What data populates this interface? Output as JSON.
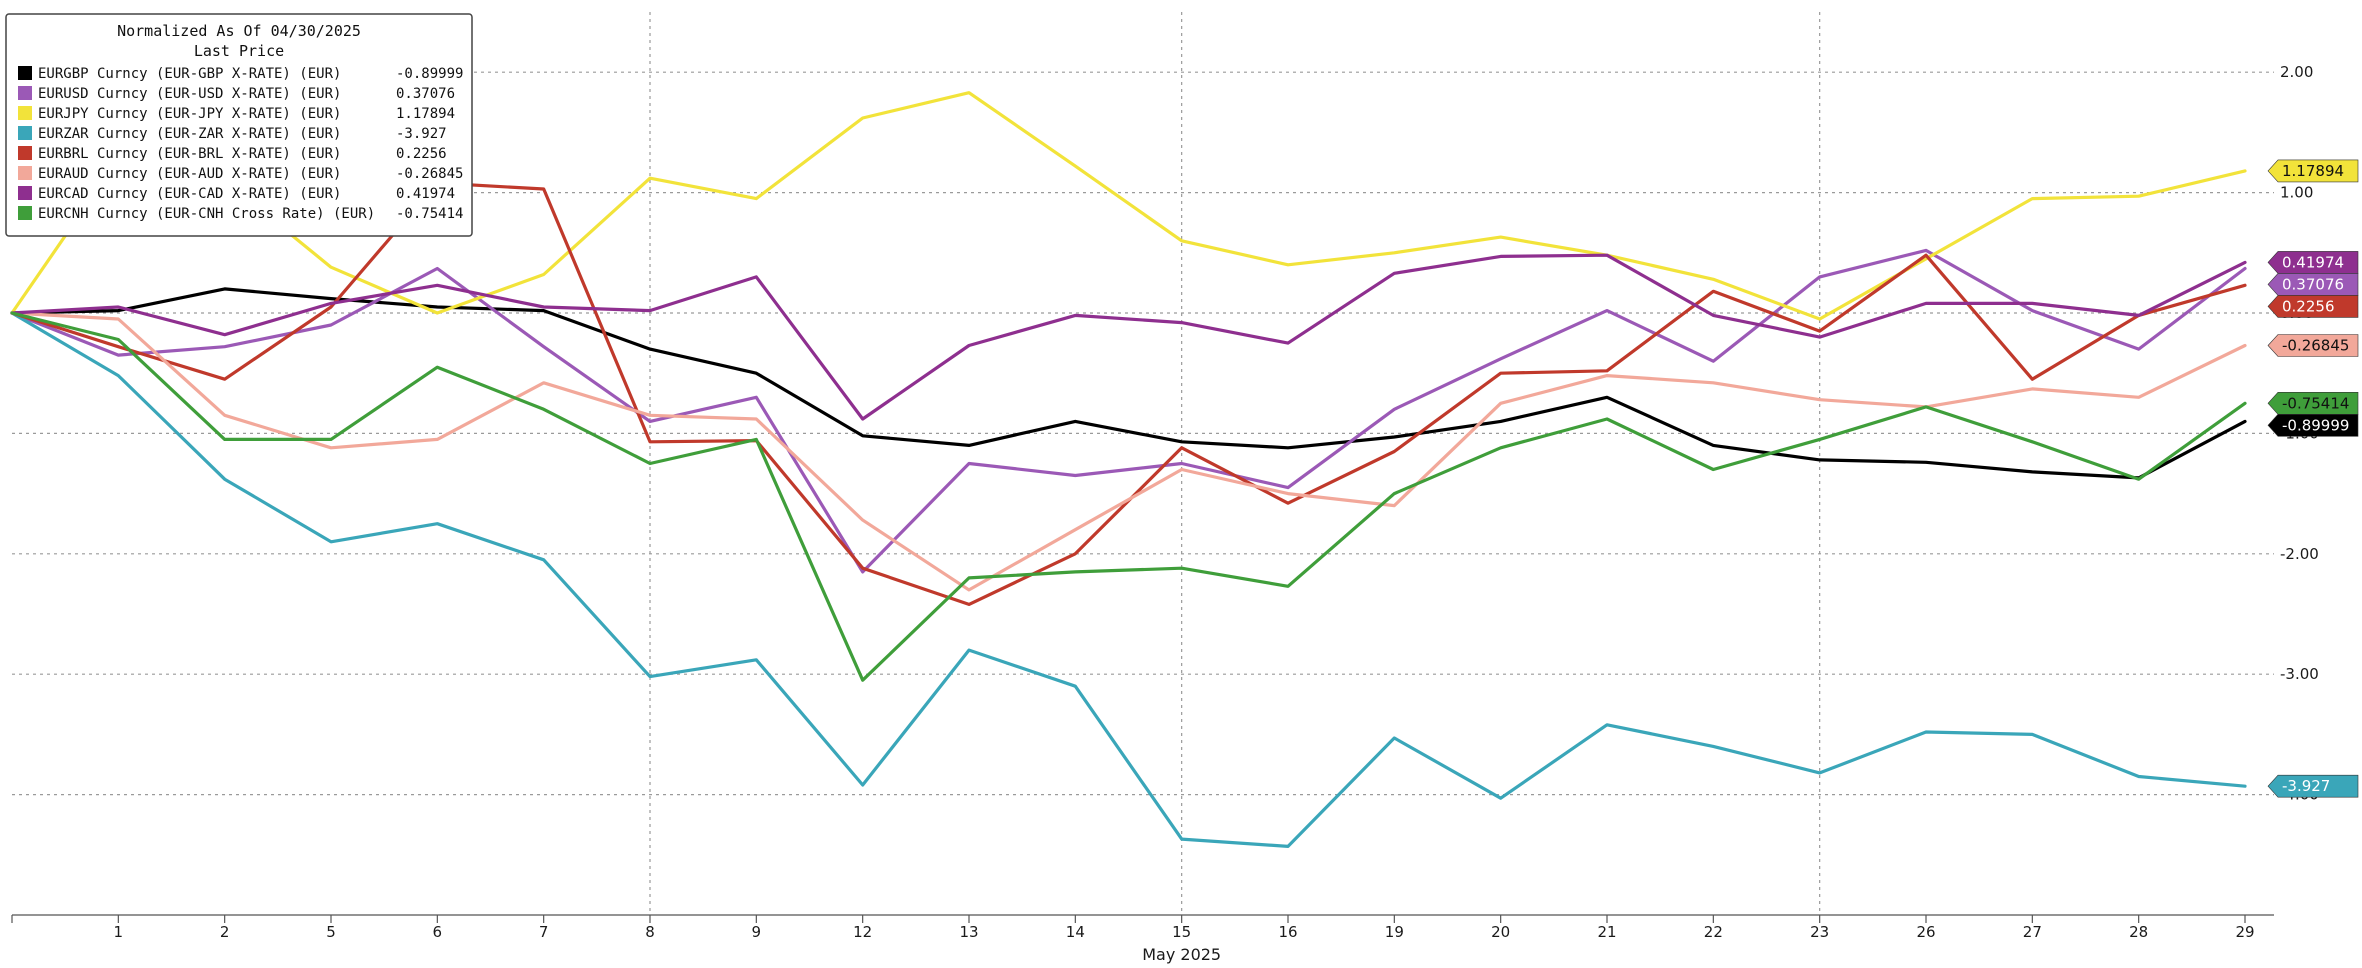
{
  "chart_data": {
    "type": "line",
    "legend": {
      "title_line1": "Normalized As Of 04/30/2025",
      "title_line2": "Last Price",
      "placement": "top-left"
    },
    "x": [
      "",
      "1",
      "2",
      "5",
      "6",
      "7",
      "8",
      "9",
      "12",
      "13",
      "14",
      "15",
      "16",
      "19",
      "20",
      "21",
      "22",
      "23",
      "26",
      "27",
      "28",
      "29"
    ],
    "xlabel": "May 2025",
    "ylim": [
      -5.0,
      2.5
    ],
    "yticks": [
      2.0,
      1.0,
      0.0,
      -1.0,
      -2.0,
      -3.0,
      -4.0
    ],
    "ytick_labels": [
      "2.00",
      "1.00",
      "0.00",
      "-1.00",
      "-2.00",
      "-3.00",
      "-4.00"
    ],
    "vertical_grid_at": [
      "8",
      "15",
      "23"
    ],
    "grid": true,
    "series": [
      {
        "name": "EURGBP Curncy (EUR-GBP X-RATE) (EUR)",
        "last_price": "-0.89999",
        "color": "#000000",
        "end_text_color": "#ffffff",
        "values": [
          0,
          0.02,
          0.2,
          0.12,
          0.05,
          0.02,
          -0.3,
          -0.5,
          -1.02,
          -1.1,
          -0.9,
          -1.07,
          -1.12,
          -1.03,
          -0.9,
          -0.7,
          -1.1,
          -1.22,
          -1.24,
          -1.32,
          -1.37,
          -0.9
        ]
      },
      {
        "name": "EURUSD Curncy (EUR-USD X-RATE) (EUR)",
        "last_price": "0.37076",
        "color": "#9b59b6",
        "end_text_color": "#ffffff",
        "values": [
          0,
          -0.35,
          -0.28,
          -0.1,
          0.37,
          -0.28,
          -0.9,
          -0.7,
          -2.15,
          -1.25,
          -1.35,
          -1.25,
          -1.45,
          -0.8,
          -0.38,
          0.02,
          -0.4,
          0.3,
          0.52,
          0.02,
          -0.3,
          0.37
        ]
      },
      {
        "name": "EURJPY Curncy (EUR-JPY X-RATE) (EUR)",
        "last_price": "1.17894",
        "color": "#f2e33a",
        "end_text_color": "#111111",
        "values": [
          0,
          1.28,
          1.1,
          0.38,
          0.0,
          0.32,
          1.12,
          0.95,
          1.62,
          1.83,
          1.22,
          0.6,
          0.4,
          0.5,
          0.63,
          0.48,
          0.28,
          -0.05,
          0.45,
          0.95,
          0.97,
          1.18
        ]
      },
      {
        "name": "EURZAR Curncy (EUR-ZAR X-RATE) (EUR)",
        "last_price": "-3.927",
        "color": "#3aa6b9",
        "end_text_color": "#ffffff",
        "values": [
          0,
          -0.52,
          -1.38,
          -1.9,
          -1.75,
          -2.05,
          -3.02,
          -2.88,
          -3.92,
          -2.8,
          -3.1,
          -4.37,
          -4.43,
          -3.53,
          -4.03,
          -3.42,
          -3.6,
          -3.82,
          -3.48,
          -3.5,
          -3.85,
          -3.93
        ]
      },
      {
        "name": "EURBRL Curncy (EUR-BRL X-RATE) (EUR)",
        "last_price": "0.2256",
        "color": "#c0392b",
        "end_text_color": "#ffffff",
        "values": [
          0,
          -0.28,
          -0.55,
          0.05,
          1.08,
          1.03,
          -1.07,
          -1.06,
          -2.12,
          -2.42,
          -2.0,
          -1.12,
          -1.58,
          -1.15,
          -0.5,
          -0.48,
          0.18,
          -0.15,
          0.48,
          -0.55,
          -0.02,
          0.23
        ]
      },
      {
        "name": "EURAUD Curncy (EUR-AUD X-RATE) (EUR)",
        "last_price": "-0.26845",
        "color": "#f2a89a",
        "end_text_color": "#111111",
        "values": [
          0,
          -0.05,
          -0.85,
          -1.12,
          -1.05,
          -0.58,
          -0.85,
          -0.88,
          -1.72,
          -2.3,
          -1.8,
          -1.3,
          -1.5,
          -1.6,
          -0.75,
          -0.52,
          -0.58,
          -0.72,
          -0.78,
          -0.63,
          -0.7,
          -0.27
        ]
      },
      {
        "name": "EURCAD Curncy (EUR-CAD X-RATE) (EUR)",
        "last_price": "0.41974",
        "color": "#8e2f8f",
        "end_text_color": "#ffffff",
        "values": [
          0,
          0.05,
          -0.18,
          0.08,
          0.23,
          0.05,
          0.02,
          0.3,
          -0.88,
          -0.27,
          -0.02,
          -0.08,
          -0.25,
          0.33,
          0.47,
          0.48,
          -0.02,
          -0.2,
          0.08,
          0.08,
          -0.02,
          0.42
        ]
      },
      {
        "name": "EURCNH Curncy (EUR-CNH Cross Rate) (EUR)",
        "last_price": "-0.75414",
        "color": "#3f9e3a",
        "end_text_color": "#111111",
        "values": [
          0,
          -0.22,
          -1.05,
          -1.05,
          -0.45,
          -0.8,
          -1.25,
          -1.05,
          -3.05,
          -2.2,
          -2.15,
          -2.12,
          -2.27,
          -1.5,
          -1.12,
          -0.88,
          -1.3,
          -1.05,
          -0.78,
          -1.07,
          -1.38,
          -0.75
        ]
      }
    ]
  }
}
